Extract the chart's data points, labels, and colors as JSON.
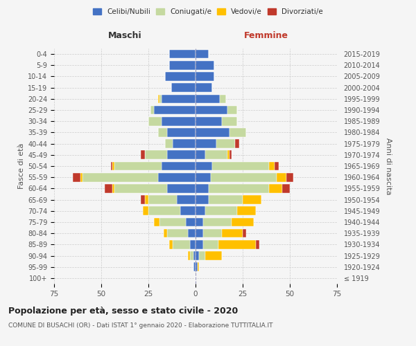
{
  "age_groups": [
    "100+",
    "95-99",
    "90-94",
    "85-89",
    "80-84",
    "75-79",
    "70-74",
    "65-69",
    "60-64",
    "55-59",
    "50-54",
    "45-49",
    "40-44",
    "35-39",
    "30-34",
    "25-29",
    "20-24",
    "15-19",
    "10-14",
    "5-9",
    "0-4"
  ],
  "birth_years": [
    "≤ 1919",
    "1920-1924",
    "1925-1929",
    "1930-1934",
    "1935-1939",
    "1940-1944",
    "1945-1949",
    "1950-1954",
    "1955-1959",
    "1960-1964",
    "1965-1969",
    "1970-1974",
    "1975-1979",
    "1980-1984",
    "1985-1989",
    "1990-1994",
    "1995-1999",
    "2000-2004",
    "2005-2009",
    "2010-2014",
    "2015-2019"
  ],
  "maschi": {
    "celibi": [
      0,
      1,
      1,
      3,
      4,
      5,
      8,
      10,
      15,
      20,
      18,
      15,
      12,
      15,
      18,
      22,
      18,
      13,
      16,
      14,
      14
    ],
    "coniugati": [
      0,
      0,
      2,
      9,
      11,
      14,
      17,
      15,
      28,
      40,
      25,
      12,
      4,
      5,
      7,
      2,
      1,
      0,
      0,
      0,
      0
    ],
    "vedovi": [
      0,
      0,
      1,
      2,
      2,
      3,
      3,
      2,
      1,
      1,
      1,
      0,
      0,
      0,
      0,
      0,
      1,
      0,
      0,
      0,
      0
    ],
    "divorziati": [
      0,
      0,
      0,
      0,
      0,
      0,
      0,
      2,
      4,
      4,
      1,
      2,
      0,
      0,
      0,
      0,
      0,
      0,
      0,
      0,
      0
    ]
  },
  "femmine": {
    "nubili": [
      0,
      1,
      2,
      4,
      4,
      4,
      5,
      7,
      7,
      8,
      9,
      5,
      11,
      18,
      14,
      17,
      13,
      9,
      10,
      10,
      7
    ],
    "coniugate": [
      0,
      0,
      3,
      8,
      10,
      15,
      17,
      18,
      32,
      35,
      30,
      12,
      10,
      9,
      8,
      5,
      3,
      0,
      0,
      0,
      0
    ],
    "vedove": [
      0,
      1,
      9,
      20,
      11,
      12,
      10,
      10,
      7,
      5,
      3,
      1,
      0,
      0,
      0,
      0,
      0,
      0,
      0,
      0,
      0
    ],
    "divorziate": [
      0,
      0,
      0,
      2,
      2,
      0,
      0,
      0,
      4,
      4,
      2,
      1,
      2,
      0,
      0,
      0,
      0,
      0,
      0,
      0,
      0
    ]
  },
  "colors": {
    "celibi": "#4472c4",
    "coniugati": "#c5d9a0",
    "vedovi": "#ffc000",
    "divorziati": "#c0392b"
  },
  "xlim": 75,
  "title": "Popolazione per età, sesso e stato civile - 2020",
  "subtitle": "COMUNE DI BUSACHI (OR) - Dati ISTAT 1° gennaio 2020 - Elaborazione TUTTITALIA.IT",
  "ylabel_left": "Fasce di età",
  "ylabel_right": "Anni di nascita",
  "xlabel_maschi": "Maschi",
  "xlabel_femmine": "Femmine",
  "legend_labels": [
    "Celibi/Nubili",
    "Coniugati/e",
    "Vedovi/e",
    "Divorziati/e"
  ],
  "bg_color": "#f5f5f5",
  "femmine_label_color": "#c0392b",
  "maschi_label_color": "#333333"
}
